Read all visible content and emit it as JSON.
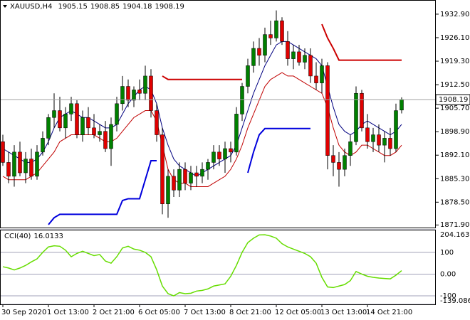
{
  "chart_data": [
    {
      "type": "candlestick",
      "title": "XAUUSD,H4",
      "categories": [
        "30 Sep 2020",
        null,
        null,
        null,
        null,
        null,
        null,
        null,
        "1 Oct 13:00",
        null,
        null,
        null,
        null,
        null,
        null,
        null,
        "2 Oct 21:00",
        null,
        null,
        null,
        null,
        null,
        null,
        null,
        "6 Oct 05:00",
        null,
        null,
        null,
        null,
        null,
        null,
        null,
        "7 Oct 13:00",
        null,
        null,
        null,
        null,
        null,
        null,
        null,
        "8 Oct 21:00",
        null,
        null,
        null,
        null,
        null,
        null,
        null,
        "12 Oct 05:00",
        null,
        null,
        null,
        null,
        null,
        null,
        null,
        "13 Oct 13:00",
        null,
        null,
        null,
        null,
        null,
        null,
        null,
        "14 Oct 21:00",
        null,
        null,
        null,
        null,
        null,
        null
      ],
      "open": [
        1896,
        1890,
        1886,
        1893,
        1887,
        1891,
        1886,
        1893,
        1897,
        1903,
        1905,
        1900,
        1904,
        1907,
        1898,
        1903,
        1900,
        1898,
        1899,
        1894,
        1901,
        1907,
        1912,
        1908,
        1911,
        1910,
        1915,
        1905,
        1898,
        1878,
        1886,
        1882,
        1888,
        1884,
        1887,
        1886,
        1888,
        1890,
        1893,
        1891,
        1894,
        1893,
        1904,
        1912,
        1918,
        1923,
        1921,
        1927,
        1926,
        1931,
        1925,
        1920,
        1922,
        1919,
        1921,
        1915,
        1913,
        1918,
        1892,
        1890,
        1888,
        1892,
        1896,
        1910,
        1900,
        1896,
        1898,
        1895,
        1897,
        1894,
        1905.15
      ],
      "high": [
        1898,
        1893,
        1895,
        1896,
        1893,
        1894,
        1895,
        1899,
        1904,
        1910,
        1909,
        1906,
        1909,
        1908,
        1905,
        1906,
        1904,
        1901,
        1902,
        1903,
        1909,
        1915,
        1914,
        1912,
        1914,
        1918,
        1917,
        1907,
        1900,
        1888,
        1888,
        1890,
        1890,
        1889,
        1889,
        1890,
        1891,
        1895,
        1895,
        1896,
        1896,
        1906,
        1913,
        1920,
        1925,
        1926,
        1929,
        1931,
        1934,
        1932,
        1928,
        1924,
        1924,
        1923,
        1923,
        1919,
        1920,
        1919,
        1895,
        1893,
        1894,
        1898,
        1912,
        1911,
        1904,
        1900,
        1901,
        1899,
        1900,
        1907,
        1908.85
      ],
      "low": [
        1889,
        1884,
        1883,
        1886,
        1884,
        1885,
        1885,
        1892,
        1895,
        1900,
        1899,
        1897,
        1902,
        1897,
        1896,
        1898,
        1897,
        1896,
        1893,
        1889,
        1899,
        1905,
        1906,
        1906,
        1908,
        1908,
        1903,
        1896,
        1875,
        1874,
        1880,
        1880,
        1882,
        1882,
        1883,
        1884,
        1885,
        1888,
        1889,
        1887,
        1890,
        1892,
        1902,
        1910,
        1916,
        1918,
        1919,
        1924,
        1925,
        1924,
        1918,
        1917,
        1918,
        1917,
        1913,
        1911,
        1910,
        1888,
        1886,
        1883,
        1886,
        1889,
        1895,
        1899,
        1894,
        1893,
        1893,
        1890,
        1892,
        1893,
        1904.18
      ],
      "close": [
        1890,
        1886,
        1893,
        1887,
        1891,
        1886,
        1893,
        1897,
        1903,
        1905,
        1900,
        1904,
        1907,
        1898,
        1903,
        1900,
        1898,
        1899,
        1894,
        1901,
        1907,
        1912,
        1908,
        1911,
        1910,
        1915,
        1905,
        1898,
        1878,
        1886,
        1882,
        1888,
        1884,
        1887,
        1886,
        1888,
        1890,
        1893,
        1891,
        1894,
        1893,
        1904,
        1912,
        1918,
        1923,
        1921,
        1927,
        1926,
        1931,
        1925,
        1920,
        1922,
        1919,
        1921,
        1915,
        1913,
        1918,
        1892,
        1890,
        1888,
        1892,
        1896,
        1910,
        1900,
        1896,
        1898,
        1895,
        1897,
        1894,
        1905,
        1908.19
      ],
      "up_color": "#008000",
      "down_color": "#e00000",
      "lines": [
        {
          "color": "#000080",
          "values": [
            1894,
            1893,
            1892,
            1891,
            1890,
            1890,
            1891,
            1893,
            1896,
            1900,
            1903,
            1904,
            1905,
            1904,
            1903,
            1903,
            1902,
            1901,
            1900,
            1900,
            1901,
            1904,
            1907,
            1909,
            1911,
            1912,
            1911,
            1907,
            1900,
            1895,
            1891,
            1889,
            1888,
            1887,
            1886,
            1887,
            1888,
            1889,
            1890,
            1891,
            1892,
            1895,
            1900,
            1905,
            1910,
            1914,
            1918,
            1921,
            1924,
            1925,
            1925,
            1924,
            1923,
            1922,
            1921,
            1920,
            1918,
            1912,
            1906,
            1901,
            1899,
            1898,
            1899,
            1901,
            1902,
            1901,
            1900,
            1899,
            1898,
            1899,
            1901
          ]
        },
        {
          "color": "#c00000",
          "values": [
            1886,
            1885,
            1885,
            1885,
            1885,
            1886,
            1887,
            1889,
            1891,
            1893,
            1896,
            1897,
            1898,
            1898,
            1898,
            1898,
            1898,
            1897,
            1896,
            1896,
            1897,
            1899,
            1901,
            1903,
            1904,
            1905,
            1905,
            1902,
            1895,
            1888,
            1885,
            1884,
            1884,
            1883,
            1883,
            1883,
            1883,
            1884,
            1885,
            1886,
            1888,
            1891,
            1895,
            1900,
            1904,
            1908,
            1912,
            1914,
            1915,
            1916,
            1915,
            1915,
            1914,
            1913,
            1912,
            1911,
            1910,
            1906,
            1900,
            1895,
            1893,
            1892,
            1893,
            1895,
            1895,
            1894,
            1893,
            1892,
            1892,
            1893,
            1895
          ]
        },
        {
          "color": "#cc0000",
          "values": [
            null,
            null,
            null,
            null,
            null,
            null,
            null,
            null,
            null,
            null,
            null,
            null,
            null,
            null,
            null,
            null,
            null,
            null,
            null,
            null,
            null,
            null,
            null,
            null,
            null,
            null,
            null,
            null,
            1915,
            1914,
            1914,
            1914,
            1914,
            1914,
            1914,
            1914,
            1914,
            1914,
            1914,
            1914,
            1914,
            1914,
            1914,
            null,
            null,
            null,
            null,
            null,
            null,
            null,
            null,
            null,
            null,
            null,
            null,
            null,
            1930,
            1926,
            1923,
            1919.6,
            1919.6,
            1919.6,
            1919.6,
            1919.6,
            1919.6,
            1919.6,
            1919.6,
            1919.6,
            1919.6,
            1919.6,
            1919.6
          ]
        },
        {
          "color": "#0000dd",
          "values": [
            null,
            null,
            null,
            null,
            null,
            null,
            null,
            null,
            1872,
            1874,
            1875,
            1875,
            1875,
            1875,
            1875,
            1875,
            1875,
            1875,
            1875,
            1875,
            1875,
            1879,
            1879.5,
            1879.5,
            1879.5,
            1885,
            1890.5,
            1890.5,
            null,
            null,
            null,
            null,
            null,
            null,
            null,
            null,
            null,
            null,
            null,
            null,
            null,
            null,
            null,
            1887,
            1893,
            1898,
            1899.8,
            1899.8,
            1899.8,
            1899.8,
            1899.8,
            1899.8,
            1899.8,
            1899.8,
            1899.8,
            null,
            null,
            null,
            null,
            null,
            null,
            null,
            null,
            null,
            null,
            null,
            null,
            null,
            null,
            null,
            null
          ]
        }
      ],
      "ylim": [
        1871.16,
        1937.0
      ],
      "yticks": [
        {
          "value": 1932.9,
          "label": "1932.90"
        },
        {
          "value": 1926.1,
          "label": "1926.10"
        },
        {
          "value": 1919.3,
          "label": "1919.30"
        },
        {
          "value": 1912.5,
          "label": "1912.50"
        },
        {
          "value": 1905.7,
          "label": "1905.70"
        },
        {
          "value": 1898.9,
          "label": "1898.90"
        },
        {
          "value": 1892.1,
          "label": "1892.10"
        },
        {
          "value": 1885.3,
          "label": "1885.30"
        },
        {
          "value": 1878.5,
          "label": "1878.50"
        },
        {
          "value": 1871.9,
          "label": "1871.90"
        }
      ]
    },
    {
      "type": "line",
      "title": "CCI(40)",
      "series": [
        {
          "color": "#66dd00",
          "values": [
            34,
            28,
            19,
            28,
            40,
            56,
            70,
            100,
            125,
            130,
            128,
            110,
            80,
            95,
            105,
            95,
            85,
            90,
            60,
            50,
            80,
            120,
            128,
            115,
            110,
            100,
            80,
            20,
            -55,
            -90,
            -100,
            -85,
            -90,
            -88,
            -78,
            -75,
            -68,
            -55,
            -50,
            -45,
            -10,
            40,
            100,
            145,
            165,
            180,
            181,
            175,
            165,
            140,
            125,
            115,
            105,
            95,
            80,
            50,
            -15,
            -59,
            -62,
            -55,
            -48,
            -30,
            12,
            0,
            -10,
            -15,
            -18,
            -20,
            -22,
            -5,
            16.0133
          ]
        }
      ],
      "ylim": [
        -139.0864,
        204.1635
      ],
      "yticks": [
        204.1635,
        100,
        {
          "value": 0,
          "label": "0.00"
        },
        -100,
        -139.0864
      ],
      "grid": true
    }
  ]
}
